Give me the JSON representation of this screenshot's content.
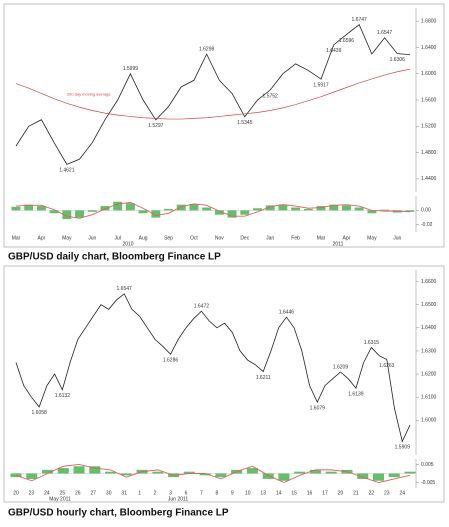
{
  "chart_data": [
    {
      "type": "line",
      "caption": "GBP/USD daily chart, Bloomberg Finance LP",
      "categories": [
        "Mar",
        null,
        "Apr",
        null,
        "May",
        null,
        "Jun",
        null,
        "Jul",
        null,
        "Aug",
        null,
        "Sep",
        null,
        "Oct",
        null,
        "Nov",
        null,
        "Dec",
        null,
        "Jan",
        null,
        "Feb",
        null,
        "Mar",
        null,
        "Apr",
        null,
        "May",
        null,
        "Jun",
        null
      ],
      "year_labels": [
        "2010",
        "2011"
      ],
      "ylim": [
        1.42,
        1.7
      ],
      "yticks": [
        {
          "value": 1.68,
          "label": "1.6800"
        },
        {
          "value": 1.64,
          "label": "1.6400"
        },
        {
          "value": 1.6,
          "label": "1.6000"
        },
        {
          "value": 1.56,
          "label": "1.5600"
        },
        {
          "value": 1.52,
          "label": "1.5200"
        },
        {
          "value": 1.48,
          "label": "1.4800"
        },
        {
          "value": 1.44,
          "label": "1.4400"
        }
      ],
      "series": [
        {
          "name": "GBP/USD",
          "color": "#222222",
          "values": [
            1.49,
            1.52,
            1.53,
            1.495,
            1.4621,
            1.47,
            1.495,
            1.53,
            1.56,
            1.5999,
            1.56,
            1.5297,
            1.55,
            1.58,
            1.59,
            1.6298,
            1.59,
            1.57,
            1.5345,
            1.56,
            1.5752,
            1.6,
            1.615,
            1.605,
            1.5917,
            1.6439,
            1.6596,
            1.6747,
            1.63,
            1.6547,
            1.6306,
            1.629
          ],
          "value_labels": [
            null,
            null,
            null,
            null,
            "1.4621",
            null,
            null,
            null,
            null,
            "1.5999",
            null,
            "1.5297",
            null,
            null,
            null,
            "1.6298",
            null,
            null,
            "1.5345",
            null,
            "1.5752",
            null,
            null,
            null,
            "1.5917",
            "1.6439",
            "1.6596",
            "1.6747",
            null,
            "1.6547",
            "1.6306",
            null
          ]
        },
        {
          "name": "200 day moving average",
          "color": "#d04848",
          "values": [
            1.585,
            1.578,
            1.57,
            1.562,
            1.555,
            1.549,
            1.544,
            1.54,
            1.537,
            1.535,
            1.533,
            1.532,
            1.531,
            1.531,
            1.532,
            1.533,
            1.535,
            1.537,
            1.539,
            1.541,
            1.544,
            1.548,
            1.553,
            1.559,
            1.565,
            1.572,
            1.579,
            1.586,
            1.592,
            1.598,
            1.603,
            1.607
          ]
        }
      ]
    },
    {
      "type": "oscillator",
      "ylim": [
        -0.03,
        0.02
      ],
      "yticks": [
        {
          "value": 0,
          "label": "0.00"
        },
        {
          "value": -0.02,
          "label": "-0.02"
        }
      ],
      "series": [
        {
          "color": "#3cb043",
          "values": [
            0.005,
            0.008,
            0.006,
            -0.004,
            -0.012,
            -0.01,
            -0.002,
            0.006,
            0.012,
            0.01,
            -0.004,
            -0.01,
            0.002,
            0.008,
            0.009,
            0.004,
            -0.006,
            -0.01,
            -0.006,
            0.003,
            0.007,
            0.008,
            0.004,
            0.002,
            0.006,
            0.008,
            0.007,
            0.004,
            -0.004,
            0.001,
            -0.003,
            -0.002
          ]
        },
        {
          "color": "#e06060",
          "values": [
            0.006,
            0.007,
            0.007,
            0.001,
            -0.008,
            -0.011,
            -0.006,
            0.002,
            0.009,
            0.011,
            0.003,
            -0.007,
            -0.004,
            0.005,
            0.009,
            0.007,
            -0.001,
            -0.008,
            -0.008,
            -0.002,
            0.005,
            0.008,
            0.006,
            0.003,
            0.004,
            0.007,
            0.008,
            0.006,
            0.0,
            -0.001,
            -0.001,
            -0.002
          ]
        }
      ]
    },
    {
      "type": "line",
      "caption": "GBP/USD hourly chart, Bloomberg Finance LP",
      "categories": [
        "20",
        null,
        "23",
        null,
        "24",
        null,
        "25",
        null,
        "26",
        null,
        "27",
        null,
        "30",
        null,
        "31",
        null,
        "1",
        null,
        "2",
        null,
        "3",
        null,
        "6",
        null,
        "7",
        null,
        "8",
        null,
        "9",
        null,
        "10",
        null,
        "13",
        null,
        "14",
        null,
        "15",
        null,
        "16",
        null,
        "17",
        null,
        "20",
        null,
        "21",
        null,
        "22",
        null,
        "23",
        null,
        "24",
        null
      ],
      "year_labels": [
        "May 2011",
        "Jun 2011"
      ],
      "ylim": [
        1.585,
        1.665
      ],
      "yticks": [
        {
          "value": 1.66,
          "label": "1.6600"
        },
        {
          "value": 1.65,
          "label": "1.6500"
        },
        {
          "value": 1.64,
          "label": "1.6400"
        },
        {
          "value": 1.63,
          "label": "1.6300"
        },
        {
          "value": 1.62,
          "label": "1.6200"
        },
        {
          "value": 1.61,
          "label": "1.6100"
        },
        {
          "value": 1.6,
          "label": "1.6000"
        }
      ],
      "series": [
        {
          "name": "GBP/USD",
          "color": "#222222",
          "values": [
            1.625,
            1.615,
            1.61,
            1.6058,
            1.615,
            1.62,
            1.6132,
            1.625,
            1.635,
            1.64,
            1.645,
            1.65,
            1.648,
            1.652,
            1.6547,
            1.648,
            1.645,
            1.64,
            1.635,
            1.632,
            1.6286,
            1.635,
            1.64,
            1.644,
            1.6472,
            1.643,
            1.64,
            1.642,
            1.638,
            1.63,
            1.626,
            1.624,
            1.6211,
            1.63,
            1.64,
            1.6446,
            1.64,
            1.63,
            1.615,
            1.6079,
            1.615,
            1.618,
            1.6209,
            1.618,
            1.6139,
            1.625,
            1.6315,
            1.628,
            1.6263,
            1.605,
            1.5909,
            1.598
          ],
          "value_labels": [
            null,
            null,
            null,
            "1.6058",
            null,
            null,
            "1.6132",
            null,
            null,
            null,
            null,
            null,
            null,
            null,
            "1.6547",
            null,
            null,
            null,
            null,
            null,
            "1.6286",
            null,
            null,
            null,
            "1.6472",
            null,
            null,
            null,
            null,
            null,
            null,
            null,
            "1.6211",
            null,
            null,
            "1.6446",
            null,
            null,
            null,
            "1.6079",
            null,
            null,
            "1.6209",
            null,
            "1.6139",
            null,
            "1.6315",
            null,
            "1.6263",
            null,
            "1.5909",
            null
          ]
        }
      ]
    },
    {
      "type": "oscillator",
      "ylim": [
        -0.008,
        0.008
      ],
      "yticks": [
        {
          "value": 0.005,
          "label": "0.005"
        },
        {
          "value": -0.005,
          "label": "-0.005"
        }
      ],
      "series": [
        {
          "color": "#3cb043",
          "values": [
            -0.002,
            -0.003,
            0.002,
            0.003,
            0.004,
            0.004,
            0.001,
            -0.001,
            0.002,
            0.001,
            -0.002,
            0.001,
            -0.001,
            -0.002,
            0.002,
            0.003,
            -0.003,
            -0.004,
            0.001,
            0.002,
            0.001,
            0.002,
            -0.003,
            -0.004,
            -0.002,
            0.001
          ]
        },
        {
          "color": "#e06060",
          "values": [
            -0.001,
            -0.004,
            0.0,
            0.004,
            0.005,
            0.003,
            0.002,
            -0.002,
            0.001,
            0.002,
            -0.001,
            0.0,
            0.0,
            -0.003,
            0.001,
            0.004,
            -0.001,
            -0.005,
            -0.001,
            0.002,
            0.002,
            0.001,
            -0.002,
            -0.005,
            -0.003,
            -0.001
          ]
        }
      ]
    }
  ]
}
